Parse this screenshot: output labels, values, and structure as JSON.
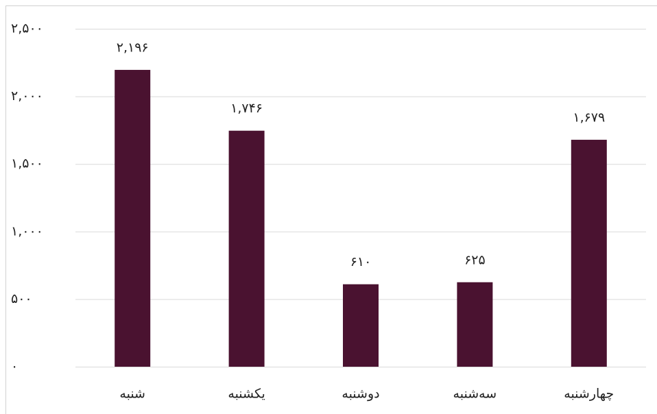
{
  "chart_data": {
    "type": "bar",
    "categories": [
      "شنبه",
      "یکشنبه",
      "دوشنبه",
      "سه‌شنبه",
      "چهارشنبه"
    ],
    "values": [
      2196,
      1746,
      610,
      625,
      1679
    ],
    "value_labels": [
      "۲,۱۹۶",
      "۱,۷۴۶",
      "۶۱۰",
      "۶۲۵",
      "۱,۶۷۹"
    ],
    "color": "#4a1230",
    "ylim": [
      0,
      2500
    ],
    "yticks": [
      {
        "value": 0,
        "label": "۰"
      },
      {
        "value": 500,
        "label": "۵۰۰"
      },
      {
        "value": 1000,
        "label": "۱,۰۰۰"
      },
      {
        "value": 1500,
        "label": "۱,۵۰۰"
      },
      {
        "value": 2000,
        "label": "۲,۰۰۰"
      },
      {
        "value": 2500,
        "label": "۲,۵۰۰"
      }
    ],
    "grid": true
  }
}
